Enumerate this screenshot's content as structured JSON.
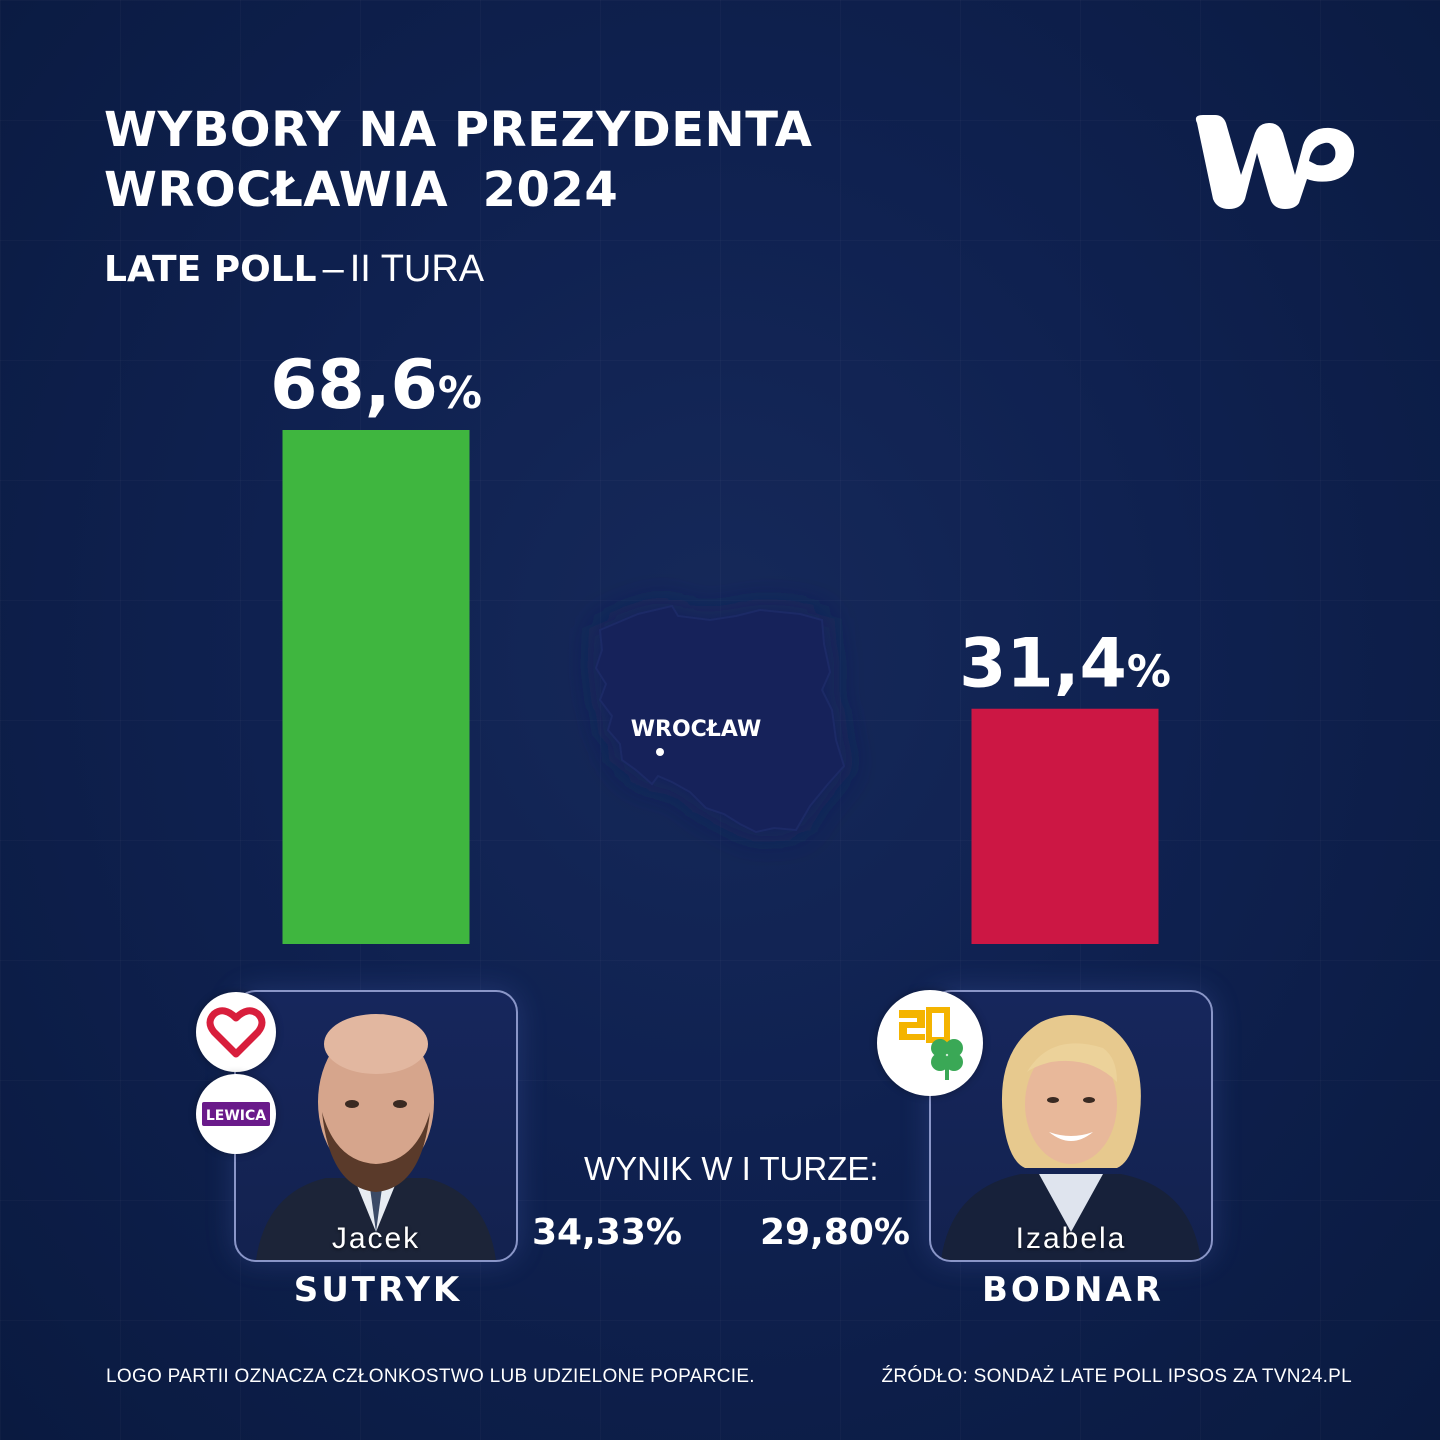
{
  "header": {
    "title_line1": "WYBORY NA PREZYDENTA",
    "title_line2": "WROCŁAWIA  2024",
    "subtitle_strong": "LATE POLL",
    "subtitle_dash": "–",
    "subtitle_rest": "II TURA"
  },
  "logo": {
    "name": "wp-logo",
    "color": "#ffffff"
  },
  "chart_data": {
    "type": "bar",
    "categories": [
      "Jacek SUTRYK",
      "Izabela BODNAR"
    ],
    "values": [
      68.6,
      31.4
    ],
    "value_labels": [
      "68,6",
      "31,4"
    ],
    "unit": "%",
    "colors": [
      "#3fb63f",
      "#cc1744"
    ],
    "ylim": [
      0,
      68.6
    ],
    "grid": false,
    "title": "",
    "xlabel": "",
    "ylabel": ""
  },
  "map": {
    "city_label": "WROCŁAW",
    "fill": "#16215a"
  },
  "candidates": [
    {
      "first_name": "Jacek",
      "last_name": "SUTRYK",
      "party_badges": [
        "heart-icon",
        "LEWICA"
      ],
      "first_round": "34,33%"
    },
    {
      "first_name": "Izabela",
      "last_name": "BODNAR",
      "party_badges": [
        "2050-icon",
        "clover-icon"
      ],
      "first_round": "29,80%"
    }
  ],
  "first_round_label": "WYNIK W I TURZE:",
  "footer": {
    "left": "LOGO PARTII OZNACZA CZŁONKOSTWO LUB UDZIELONE POPARCIE.",
    "right": "ŹRÓDŁO: SONDAŻ LATE POLL IPSOS ZA TVN24.PL"
  }
}
